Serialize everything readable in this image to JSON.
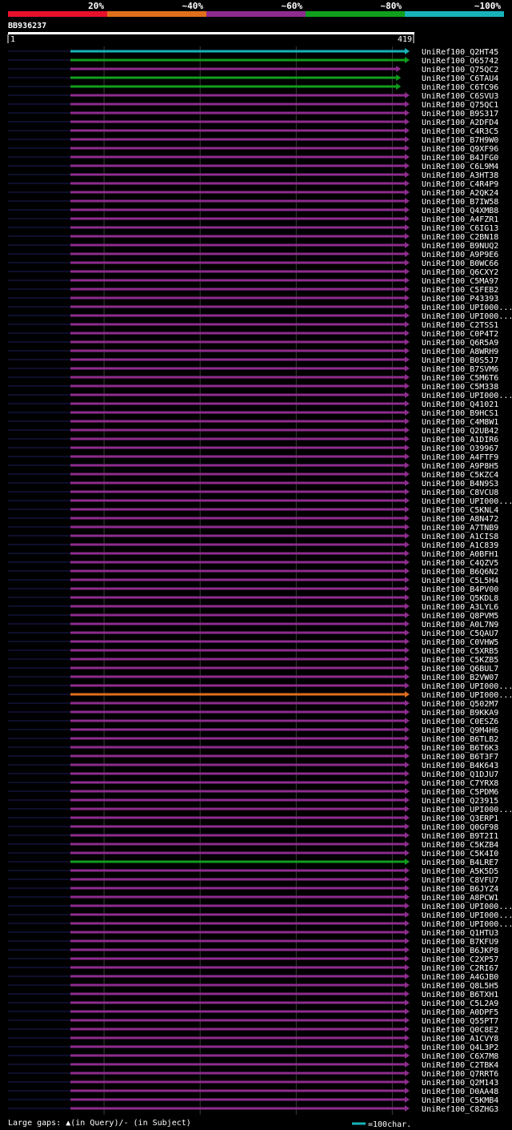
{
  "chart_data": {
    "type": "alignment-overview",
    "query_id": "BB936237",
    "query_length": 419,
    "ruler": {
      "start_label": "1",
      "end_label": "419"
    },
    "identity_scale": [
      {
        "label": "20%",
        "color": "#e8112d"
      },
      {
        "label": "~40%",
        "color": "#e06f1c"
      },
      {
        "label": "~60%",
        "color": "#8e2c8e"
      },
      {
        "label": "~80%",
        "color": "#119e1d"
      },
      {
        "label": "~100%",
        "color": "#17b3b9"
      }
    ],
    "hits": [
      {
        "name": "UniRef100_Q2HT45",
        "start": 1,
        "end": 419,
        "color": "#17b3b9"
      },
      {
        "name": "UniRef100_O65742",
        "start": 1,
        "end": 419,
        "color": "#119e1d"
      },
      {
        "name": "UniRef100_Q75QC2",
        "start": 1,
        "end": 410,
        "color": "#8e2c8e"
      },
      {
        "name": "UniRef100_C6TAU4",
        "start": 1,
        "end": 410,
        "color": "#119e1d"
      },
      {
        "name": "UniRef100_C6TC96",
        "start": 1,
        "end": 410,
        "color": "#119e1d"
      },
      {
        "name": "UniRef100_C6SVU3",
        "start": 1,
        "end": 419,
        "color": "#8e2c8e"
      },
      {
        "name": "UniRef100_Q75QC1",
        "start": 1,
        "end": 419,
        "color": "#8e2c8e"
      },
      {
        "name": "UniRef100_B9S317",
        "start": 1,
        "end": 419,
        "color": "#8e2c8e"
      },
      {
        "name": "UniRef100_A2DFD4",
        "start": 1,
        "end": 419,
        "color": "#8e2c8e"
      },
      {
        "name": "UniRef100_C4R3C5",
        "start": 1,
        "end": 419,
        "color": "#8e2c8e"
      },
      {
        "name": "UniRef100_B7H9W0",
        "start": 1,
        "end": 419,
        "color": "#8e2c8e"
      },
      {
        "name": "UniRef100_Q9XF96",
        "start": 1,
        "end": 419,
        "color": "#8e2c8e"
      },
      {
        "name": "UniRef100_B4JFG0",
        "start": 1,
        "end": 419,
        "color": "#8e2c8e"
      },
      {
        "name": "UniRef100_C6L9M4",
        "start": 1,
        "end": 419,
        "color": "#8e2c8e"
      },
      {
        "name": "UniRef100_A3HT38",
        "start": 1,
        "end": 419,
        "color": "#8e2c8e"
      },
      {
        "name": "UniRef100_C4R4P9",
        "start": 1,
        "end": 419,
        "color": "#8e2c8e"
      },
      {
        "name": "UniRef100_A2QK24",
        "start": 1,
        "end": 419,
        "color": "#8e2c8e"
      },
      {
        "name": "UniRef100_B7IW58",
        "start": 1,
        "end": 419,
        "color": "#8e2c8e"
      },
      {
        "name": "UniRef100_Q4XMB8",
        "start": 1,
        "end": 419,
        "color": "#8e2c8e"
      },
      {
        "name": "UniRef100_A4FZR1",
        "start": 1,
        "end": 419,
        "color": "#8e2c8e"
      },
      {
        "name": "UniRef100_C6IG13",
        "start": 1,
        "end": 419,
        "color": "#8e2c8e"
      },
      {
        "name": "UniRef100_C2BN18",
        "start": 1,
        "end": 419,
        "color": "#8e2c8e"
      },
      {
        "name": "UniRef100_B9NUQ2",
        "start": 1,
        "end": 419,
        "color": "#8e2c8e"
      },
      {
        "name": "UniRef100_A9P9E6",
        "start": 1,
        "end": 419,
        "color": "#8e2c8e"
      },
      {
        "name": "UniRef100_B0WC66",
        "start": 1,
        "end": 419,
        "color": "#8e2c8e"
      },
      {
        "name": "UniRef100_Q6CXY2",
        "start": 1,
        "end": 419,
        "color": "#8e2c8e"
      },
      {
        "name": "UniRef100_C5MA97",
        "start": 1,
        "end": 419,
        "color": "#8e2c8e"
      },
      {
        "name": "UniRef100_C5FEB2",
        "start": 1,
        "end": 419,
        "color": "#8e2c8e"
      },
      {
        "name": "UniRef100_P43393",
        "start": 1,
        "end": 419,
        "color": "#8e2c8e"
      },
      {
        "name": "UniRef100_UPI000...",
        "start": 1,
        "end": 419,
        "color": "#8e2c8e"
      },
      {
        "name": "UniRef100_UPI000...",
        "start": 1,
        "end": 419,
        "color": "#8e2c8e"
      },
      {
        "name": "UniRef100_C2TSS1",
        "start": 1,
        "end": 419,
        "color": "#8e2c8e"
      },
      {
        "name": "UniRef100_C0P4T2",
        "start": 1,
        "end": 419,
        "color": "#8e2c8e"
      },
      {
        "name": "UniRef100_Q6R5A9",
        "start": 1,
        "end": 419,
        "color": "#8e2c8e"
      },
      {
        "name": "UniRef100_A8WRH9",
        "start": 1,
        "end": 419,
        "color": "#8e2c8e"
      },
      {
        "name": "UniRef100_B0S5J7",
        "start": 1,
        "end": 419,
        "color": "#8e2c8e"
      },
      {
        "name": "UniRef100_B7SVM6",
        "start": 1,
        "end": 419,
        "color": "#8e2c8e"
      },
      {
        "name": "UniRef100_C5M6T6",
        "start": 1,
        "end": 419,
        "color": "#8e2c8e"
      },
      {
        "name": "UniRef100_C5M338",
        "start": 1,
        "end": 419,
        "color": "#8e2c8e"
      },
      {
        "name": "UniRef100_UPI000...",
        "start": 1,
        "end": 419,
        "color": "#8e2c8e"
      },
      {
        "name": "UniRef100_Q41021",
        "start": 1,
        "end": 419,
        "color": "#8e2c8e"
      },
      {
        "name": "UniRef100_B9HCS1",
        "start": 1,
        "end": 419,
        "color": "#8e2c8e"
      },
      {
        "name": "UniRef100_C4M8W1",
        "start": 1,
        "end": 419,
        "color": "#8e2c8e"
      },
      {
        "name": "UniRef100_Q2UB42",
        "start": 1,
        "end": 419,
        "color": "#8e2c8e"
      },
      {
        "name": "UniRef100_A1DIR6",
        "start": 1,
        "end": 419,
        "color": "#8e2c8e"
      },
      {
        "name": "UniRef100_O39967",
        "start": 1,
        "end": 419,
        "color": "#8e2c8e"
      },
      {
        "name": "UniRef100_A4FTF9",
        "start": 1,
        "end": 419,
        "color": "#8e2c8e"
      },
      {
        "name": "UniRef100_A9P8H5",
        "start": 1,
        "end": 419,
        "color": "#8e2c8e"
      },
      {
        "name": "UniRef100_C5KZC4",
        "start": 1,
        "end": 419,
        "color": "#8e2c8e"
      },
      {
        "name": "UniRef100_B4N9S3",
        "start": 1,
        "end": 419,
        "color": "#8e2c8e"
      },
      {
        "name": "UniRef100_C8VCU8",
        "start": 1,
        "end": 419,
        "color": "#8e2c8e"
      },
      {
        "name": "UniRef100_UPI000...",
        "start": 1,
        "end": 419,
        "color": "#8e2c8e"
      },
      {
        "name": "UniRef100_C5KNL4",
        "start": 1,
        "end": 419,
        "color": "#8e2c8e"
      },
      {
        "name": "UniRef100_A8N472",
        "start": 1,
        "end": 419,
        "color": "#8e2c8e"
      },
      {
        "name": "UniRef100_A7TNB9",
        "start": 1,
        "end": 419,
        "color": "#8e2c8e"
      },
      {
        "name": "UniRef100_A1CIS8",
        "start": 1,
        "end": 419,
        "color": "#8e2c8e"
      },
      {
        "name": "UniRef100_A1C839",
        "start": 1,
        "end": 419,
        "color": "#8e2c8e"
      },
      {
        "name": "UniRef100_A0BFH1",
        "start": 1,
        "end": 419,
        "color": "#8e2c8e"
      },
      {
        "name": "UniRef100_C4QZV5",
        "start": 1,
        "end": 419,
        "color": "#8e2c8e"
      },
      {
        "name": "UniRef100_B6Q6N2",
        "start": 1,
        "end": 419,
        "color": "#8e2c8e"
      },
      {
        "name": "UniRef100_C5L5H4",
        "start": 1,
        "end": 419,
        "color": "#8e2c8e"
      },
      {
        "name": "UniRef100_B4PV00",
        "start": 1,
        "end": 419,
        "color": "#8e2c8e"
      },
      {
        "name": "UniRef100_Q5KDL8",
        "start": 1,
        "end": 419,
        "color": "#8e2c8e"
      },
      {
        "name": "UniRef100_A3LYL6",
        "start": 1,
        "end": 419,
        "color": "#8e2c8e"
      },
      {
        "name": "UniRef100_Q8PVM5",
        "start": 1,
        "end": 419,
        "color": "#8e2c8e"
      },
      {
        "name": "UniRef100_A0L7N9",
        "start": 1,
        "end": 419,
        "color": "#8e2c8e"
      },
      {
        "name": "UniRef100_C5QAU7",
        "start": 1,
        "end": 419,
        "color": "#8e2c8e"
      },
      {
        "name": "UniRef100_C0VHW5",
        "start": 1,
        "end": 419,
        "color": "#8e2c8e"
      },
      {
        "name": "UniRef100_C5XRB5",
        "start": 1,
        "end": 419,
        "color": "#8e2c8e"
      },
      {
        "name": "UniRef100_C5KZB5",
        "start": 1,
        "end": 419,
        "color": "#8e2c8e"
      },
      {
        "name": "UniRef100_Q6BUL7",
        "start": 1,
        "end": 419,
        "color": "#8e2c8e"
      },
      {
        "name": "UniRef100_B2VW07",
        "start": 1,
        "end": 419,
        "color": "#8e2c8e"
      },
      {
        "name": "UniRef100_UPI000...",
        "start": 1,
        "end": 419,
        "color": "#8e2c8e"
      },
      {
        "name": "UniRef100_UPI000...",
        "start": 1,
        "end": 419,
        "color": "#e06f1c"
      },
      {
        "name": "UniRef100_Q502M7",
        "start": 1,
        "end": 419,
        "color": "#8e2c8e"
      },
      {
        "name": "UniRef100_B9KKA9",
        "start": 1,
        "end": 419,
        "color": "#8e2c8e"
      },
      {
        "name": "UniRef100_C0ESZ6",
        "start": 1,
        "end": 419,
        "color": "#8e2c8e"
      },
      {
        "name": "UniRef100_Q9M4H6",
        "start": 1,
        "end": 419,
        "color": "#8e2c8e"
      },
      {
        "name": "UniRef100_B6TLB2",
        "start": 1,
        "end": 419,
        "color": "#8e2c8e"
      },
      {
        "name": "UniRef100_B6T6K3",
        "start": 1,
        "end": 419,
        "color": "#8e2c8e"
      },
      {
        "name": "UniRef100_B6T3F7",
        "start": 1,
        "end": 419,
        "color": "#8e2c8e"
      },
      {
        "name": "UniRef100_B4K643",
        "start": 1,
        "end": 419,
        "color": "#8e2c8e"
      },
      {
        "name": "UniRef100_Q1DJU7",
        "start": 1,
        "end": 419,
        "color": "#8e2c8e"
      },
      {
        "name": "UniRef100_C7YRX8",
        "start": 1,
        "end": 419,
        "color": "#8e2c8e"
      },
      {
        "name": "UniRef100_C5PDM6",
        "start": 1,
        "end": 419,
        "color": "#8e2c8e"
      },
      {
        "name": "UniRef100_Q23915",
        "start": 1,
        "end": 419,
        "color": "#8e2c8e"
      },
      {
        "name": "UniRef100_UPI000...",
        "start": 1,
        "end": 419,
        "color": "#8e2c8e"
      },
      {
        "name": "UniRef100_Q3ERP1",
        "start": 1,
        "end": 419,
        "color": "#8e2c8e"
      },
      {
        "name": "UniRef100_Q0GF98",
        "start": 1,
        "end": 419,
        "color": "#8e2c8e"
      },
      {
        "name": "UniRef100_B9T2I1",
        "start": 1,
        "end": 419,
        "color": "#8e2c8e"
      },
      {
        "name": "UniRef100_C5KZB4",
        "start": 1,
        "end": 419,
        "color": "#8e2c8e"
      },
      {
        "name": "UniRef100_C5K4I0",
        "start": 1,
        "end": 419,
        "color": "#8e2c8e"
      },
      {
        "name": "UniRef100_B4LRE7",
        "start": 1,
        "end": 419,
        "color": "#119e1d"
      },
      {
        "name": "UniRef100_A5K5D5",
        "start": 1,
        "end": 419,
        "color": "#8e2c8e"
      },
      {
        "name": "UniRef100_C8VFU7",
        "start": 1,
        "end": 419,
        "color": "#8e2c8e"
      },
      {
        "name": "UniRef100_B6JYZ4",
        "start": 1,
        "end": 419,
        "color": "#8e2c8e"
      },
      {
        "name": "UniRef100_A8PCW1",
        "start": 1,
        "end": 419,
        "color": "#8e2c8e"
      },
      {
        "name": "UniRef100_UPI000...",
        "start": 1,
        "end": 419,
        "color": "#8e2c8e"
      },
      {
        "name": "UniRef100_UPI000...",
        "start": 1,
        "end": 419,
        "color": "#8e2c8e"
      },
      {
        "name": "UniRef100_UPI000...",
        "start": 1,
        "end": 419,
        "color": "#8e2c8e"
      },
      {
        "name": "UniRef100_Q1HTU3",
        "start": 1,
        "end": 419,
        "color": "#8e2c8e"
      },
      {
        "name": "UniRef100_B7KFU9",
        "start": 1,
        "end": 419,
        "color": "#8e2c8e"
      },
      {
        "name": "UniRef100_B6JKP8",
        "start": 1,
        "end": 419,
        "color": "#8e2c8e"
      },
      {
        "name": "UniRef100_C2XP57",
        "start": 1,
        "end": 419,
        "color": "#8e2c8e"
      },
      {
        "name": "UniRef100_C2RI67",
        "start": 1,
        "end": 419,
        "color": "#8e2c8e"
      },
      {
        "name": "UniRef100_A4GJB0",
        "start": 1,
        "end": 419,
        "color": "#8e2c8e"
      },
      {
        "name": "UniRef100_Q8L5H5",
        "start": 1,
        "end": 419,
        "color": "#8e2c8e"
      },
      {
        "name": "UniRef100_B6TXH1",
        "start": 1,
        "end": 419,
        "color": "#8e2c8e"
      },
      {
        "name": "UniRef100_C5L2A9",
        "start": 1,
        "end": 419,
        "color": "#8e2c8e"
      },
      {
        "name": "UniRef100_A0DPF5",
        "start": 1,
        "end": 419,
        "color": "#8e2c8e"
      },
      {
        "name": "UniRef100_Q55PT7",
        "start": 1,
        "end": 419,
        "color": "#8e2c8e"
      },
      {
        "name": "UniRef100_Q0C8E2",
        "start": 1,
        "end": 419,
        "color": "#8e2c8e"
      },
      {
        "name": "UniRef100_A1CVY8",
        "start": 1,
        "end": 419,
        "color": "#8e2c8e"
      },
      {
        "name": "UniRef100_Q4L3P2",
        "start": 1,
        "end": 419,
        "color": "#8e2c8e"
      },
      {
        "name": "UniRef100_C6X7M8",
        "start": 1,
        "end": 419,
        "color": "#8e2c8e"
      },
      {
        "name": "UniRef100_C2TBK4",
        "start": 1,
        "end": 419,
        "color": "#8e2c8e"
      },
      {
        "name": "UniRef100_Q7RRT6",
        "start": 1,
        "end": 419,
        "color": "#8e2c8e"
      },
      {
        "name": "UniRef100_Q2M143",
        "start": 1,
        "end": 419,
        "color": "#8e2c8e"
      },
      {
        "name": "UniRef100_D0AA48",
        "start": 1,
        "end": 419,
        "color": "#8e2c8e"
      },
      {
        "name": "UniRef100_C5KMB4",
        "start": 1,
        "end": 419,
        "color": "#8e2c8e"
      },
      {
        "name": "UniRef100_C8ZHG3",
        "start": 1,
        "end": 419,
        "color": "#8e2c8e"
      }
    ],
    "footer": {
      "gaps_label": "Large gaps: ▲(in Query)/- (in Subject)",
      "scale_label": "=100char."
    }
  }
}
